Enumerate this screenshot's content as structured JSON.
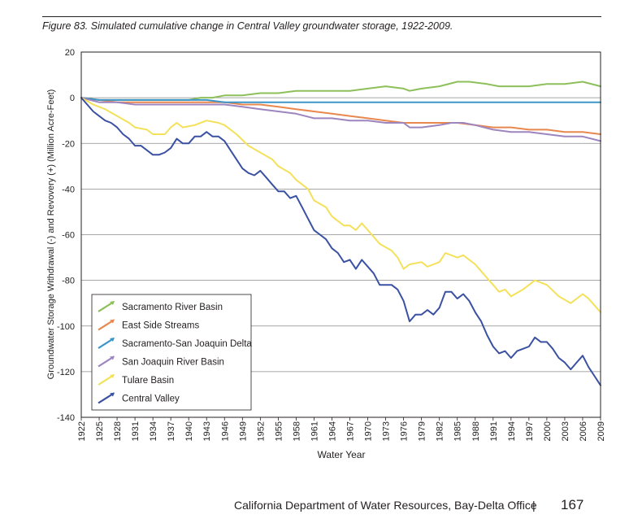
{
  "figure": {
    "caption": "Figure 83. Simulated cumulative change in Central Valley groundwater storage, 1922-2009."
  },
  "footer": {
    "organization": "California Department of Water Resources, Bay-Delta Office",
    "separator": "|",
    "page_number": "167"
  },
  "chart_data": {
    "type": "line",
    "title": "",
    "xlabel": "Water Year",
    "ylabel": "Groundwater Storage Withdrawal (-) and Revovery (+) (Million Acre-Feet)",
    "xlim": [
      1922,
      2009
    ],
    "ylim": [
      -140,
      20
    ],
    "yticks": [
      20,
      0,
      -20,
      -40,
      -60,
      -80,
      -100,
      -120,
      -140
    ],
    "xticks": [
      1922,
      1925,
      1928,
      1931,
      1934,
      1937,
      1940,
      1943,
      1946,
      1949,
      1952,
      1955,
      1958,
      1961,
      1964,
      1967,
      1970,
      1973,
      1976,
      1979,
      1982,
      1985,
      1988,
      1991,
      1994,
      1997,
      2000,
      2003,
      2006,
      2009
    ],
    "grid": "horizontal",
    "legend_position": "bottom-left",
    "series": [
      {
        "name": "Sacramento River Basin",
        "color": "#8dc05a",
        "points": [
          [
            1922,
            0
          ],
          [
            1925,
            -1
          ],
          [
            1928,
            -1
          ],
          [
            1931,
            -1
          ],
          [
            1934,
            -1
          ],
          [
            1937,
            -1
          ],
          [
            1940,
            -1
          ],
          [
            1942,
            0
          ],
          [
            1944,
            0
          ],
          [
            1946,
            1
          ],
          [
            1949,
            1
          ],
          [
            1952,
            2
          ],
          [
            1955,
            2
          ],
          [
            1958,
            3
          ],
          [
            1961,
            3
          ],
          [
            1964,
            3
          ],
          [
            1967,
            3
          ],
          [
            1970,
            4
          ],
          [
            1973,
            5
          ],
          [
            1976,
            4
          ],
          [
            1977,
            3
          ],
          [
            1979,
            4
          ],
          [
            1982,
            5
          ],
          [
            1985,
            7
          ],
          [
            1987,
            7
          ],
          [
            1990,
            6
          ],
          [
            1992,
            5
          ],
          [
            1994,
            5
          ],
          [
            1997,
            5
          ],
          [
            2000,
            6
          ],
          [
            2003,
            6
          ],
          [
            2006,
            7
          ],
          [
            2009,
            5
          ]
        ]
      },
      {
        "name": "East Side Streams",
        "color": "#e8884e",
        "points": [
          [
            1922,
            0
          ],
          [
            1925,
            -1
          ],
          [
            1928,
            -2
          ],
          [
            1931,
            -2
          ],
          [
            1934,
            -2
          ],
          [
            1937,
            -2
          ],
          [
            1940,
            -2
          ],
          [
            1943,
            -2
          ],
          [
            1946,
            -2
          ],
          [
            1949,
            -3
          ],
          [
            1952,
            -3
          ],
          [
            1955,
            -4
          ],
          [
            1958,
            -5
          ],
          [
            1961,
            -6
          ],
          [
            1964,
            -7
          ],
          [
            1967,
            -8
          ],
          [
            1970,
            -9
          ],
          [
            1973,
            -10
          ],
          [
            1976,
            -11
          ],
          [
            1979,
            -11
          ],
          [
            1982,
            -11
          ],
          [
            1985,
            -11
          ],
          [
            1988,
            -12
          ],
          [
            1991,
            -13
          ],
          [
            1994,
            -13
          ],
          [
            1997,
            -14
          ],
          [
            2000,
            -14
          ],
          [
            2003,
            -15
          ],
          [
            2006,
            -15
          ],
          [
            2009,
            -16
          ]
        ]
      },
      {
        "name": "Sacramento-San Joaquin Delta",
        "color": "#3b95c9",
        "points": [
          [
            1922,
            0
          ],
          [
            1925,
            -1
          ],
          [
            1928,
            -1
          ],
          [
            1931,
            -1
          ],
          [
            1934,
            -1
          ],
          [
            1937,
            -1
          ],
          [
            1940,
            -1
          ],
          [
            1943,
            -1
          ],
          [
            1946,
            -2
          ],
          [
            1949,
            -2
          ],
          [
            1952,
            -2
          ],
          [
            1955,
            -2
          ],
          [
            1958,
            -2
          ],
          [
            1961,
            -2
          ],
          [
            1964,
            -2
          ],
          [
            1967,
            -2
          ],
          [
            1970,
            -2
          ],
          [
            1973,
            -2
          ],
          [
            1976,
            -2
          ],
          [
            1979,
            -2
          ],
          [
            1982,
            -2
          ],
          [
            1985,
            -2
          ],
          [
            1988,
            -2
          ],
          [
            1991,
            -2
          ],
          [
            1994,
            -2
          ],
          [
            1997,
            -2
          ],
          [
            2000,
            -2
          ],
          [
            2003,
            -2
          ],
          [
            2006,
            -2
          ],
          [
            2009,
            -2
          ]
        ]
      },
      {
        "name": "San Joaquin River Basin",
        "color": "#9d85bf",
        "points": [
          [
            1922,
            0
          ],
          [
            1925,
            -2
          ],
          [
            1928,
            -2
          ],
          [
            1931,
            -3
          ],
          [
            1934,
            -3
          ],
          [
            1937,
            -3
          ],
          [
            1940,
            -3
          ],
          [
            1943,
            -3
          ],
          [
            1946,
            -3
          ],
          [
            1949,
            -4
          ],
          [
            1952,
            -5
          ],
          [
            1955,
            -6
          ],
          [
            1958,
            -7
          ],
          [
            1961,
            -9
          ],
          [
            1964,
            -9
          ],
          [
            1967,
            -10
          ],
          [
            1970,
            -10
          ],
          [
            1973,
            -11
          ],
          [
            1976,
            -11
          ],
          [
            1977,
            -13
          ],
          [
            1979,
            -13
          ],
          [
            1982,
            -12
          ],
          [
            1984,
            -11
          ],
          [
            1986,
            -11
          ],
          [
            1988,
            -12
          ],
          [
            1991,
            -14
          ],
          [
            1994,
            -15
          ],
          [
            1997,
            -15
          ],
          [
            2000,
            -16
          ],
          [
            2003,
            -17
          ],
          [
            2006,
            -17
          ],
          [
            2009,
            -19
          ]
        ]
      },
      {
        "name": "Tulare Basin",
        "color": "#f4e15a",
        "points": [
          [
            1922,
            0
          ],
          [
            1924,
            -3
          ],
          [
            1926,
            -5
          ],
          [
            1928,
            -8
          ],
          [
            1930,
            -11
          ],
          [
            1931,
            -13
          ],
          [
            1933,
            -14
          ],
          [
            1934,
            -16
          ],
          [
            1936,
            -16
          ],
          [
            1937,
            -13
          ],
          [
            1938,
            -11
          ],
          [
            1939,
            -13
          ],
          [
            1941,
            -12
          ],
          [
            1943,
            -10
          ],
          [
            1945,
            -11
          ],
          [
            1946,
            -12
          ],
          [
            1948,
            -16
          ],
          [
            1950,
            -21
          ],
          [
            1952,
            -24
          ],
          [
            1954,
            -27
          ],
          [
            1955,
            -30
          ],
          [
            1957,
            -33
          ],
          [
            1958,
            -36
          ],
          [
            1960,
            -40
          ],
          [
            1961,
            -45
          ],
          [
            1963,
            -48
          ],
          [
            1964,
            -52
          ],
          [
            1966,
            -56
          ],
          [
            1967,
            -56
          ],
          [
            1968,
            -58
          ],
          [
            1969,
            -55
          ],
          [
            1970,
            -58
          ],
          [
            1972,
            -64
          ],
          [
            1974,
            -67
          ],
          [
            1975,
            -70
          ],
          [
            1976,
            -75
          ],
          [
            1977,
            -73
          ],
          [
            1979,
            -72
          ],
          [
            1980,
            -74
          ],
          [
            1981,
            -73
          ],
          [
            1982,
            -72
          ],
          [
            1983,
            -68
          ],
          [
            1985,
            -70
          ],
          [
            1986,
            -69
          ],
          [
            1988,
            -73
          ],
          [
            1990,
            -79
          ],
          [
            1991,
            -82
          ],
          [
            1992,
            -85
          ],
          [
            1993,
            -84
          ],
          [
            1994,
            -87
          ],
          [
            1996,
            -84
          ],
          [
            1998,
            -80
          ],
          [
            2000,
            -82
          ],
          [
            2002,
            -87
          ],
          [
            2004,
            -90
          ],
          [
            2006,
            -86
          ],
          [
            2007,
            -88
          ],
          [
            2009,
            -94
          ]
        ]
      },
      {
        "name": "Central Valley",
        "color": "#3a51a3",
        "points": [
          [
            1922,
            0
          ],
          [
            1923,
            -3
          ],
          [
            1924,
            -6
          ],
          [
            1925,
            -8
          ],
          [
            1926,
            -10
          ],
          [
            1927,
            -11
          ],
          [
            1928,
            -13
          ],
          [
            1929,
            -16
          ],
          [
            1930,
            -18
          ],
          [
            1931,
            -21
          ],
          [
            1932,
            -21
          ],
          [
            1933,
            -23
          ],
          [
            1934,
            -25
          ],
          [
            1935,
            -25
          ],
          [
            1936,
            -24
          ],
          [
            1937,
            -22
          ],
          [
            1938,
            -18
          ],
          [
            1939,
            -20
          ],
          [
            1940,
            -20
          ],
          [
            1941,
            -17
          ],
          [
            1942,
            -17
          ],
          [
            1943,
            -15
          ],
          [
            1944,
            -17
          ],
          [
            1945,
            -17
          ],
          [
            1946,
            -19
          ],
          [
            1947,
            -23
          ],
          [
            1948,
            -27
          ],
          [
            1949,
            -31
          ],
          [
            1950,
            -33
          ],
          [
            1951,
            -34
          ],
          [
            1952,
            -32
          ],
          [
            1953,
            -35
          ],
          [
            1954,
            -38
          ],
          [
            1955,
            -41
          ],
          [
            1956,
            -41
          ],
          [
            1957,
            -44
          ],
          [
            1958,
            -43
          ],
          [
            1959,
            -48
          ],
          [
            1960,
            -53
          ],
          [
            1961,
            -58
          ],
          [
            1962,
            -60
          ],
          [
            1963,
            -62
          ],
          [
            1964,
            -66
          ],
          [
            1965,
            -68
          ],
          [
            1966,
            -72
          ],
          [
            1967,
            -71
          ],
          [
            1968,
            -75
          ],
          [
            1969,
            -71
          ],
          [
            1970,
            -74
          ],
          [
            1971,
            -77
          ],
          [
            1972,
            -82
          ],
          [
            1973,
            -82
          ],
          [
            1974,
            -82
          ],
          [
            1975,
            -84
          ],
          [
            1976,
            -89
          ],
          [
            1977,
            -98
          ],
          [
            1978,
            -95
          ],
          [
            1979,
            -95
          ],
          [
            1980,
            -93
          ],
          [
            1981,
            -95
          ],
          [
            1982,
            -92
          ],
          [
            1983,
            -85
          ],
          [
            1984,
            -85
          ],
          [
            1985,
            -88
          ],
          [
            1986,
            -86
          ],
          [
            1987,
            -89
          ],
          [
            1988,
            -94
          ],
          [
            1989,
            -98
          ],
          [
            1990,
            -104
          ],
          [
            1991,
            -109
          ],
          [
            1992,
            -112
          ],
          [
            1993,
            -111
          ],
          [
            1994,
            -114
          ],
          [
            1995,
            -111
          ],
          [
            1996,
            -110
          ],
          [
            1997,
            -109
          ],
          [
            1998,
            -105
          ],
          [
            1999,
            -107
          ],
          [
            2000,
            -107
          ],
          [
            2001,
            -110
          ],
          [
            2002,
            -114
          ],
          [
            2003,
            -116
          ],
          [
            2004,
            -119
          ],
          [
            2005,
            -116
          ],
          [
            2006,
            -113
          ],
          [
            2007,
            -118
          ],
          [
            2008,
            -122
          ],
          [
            2009,
            -126
          ]
        ]
      }
    ]
  }
}
